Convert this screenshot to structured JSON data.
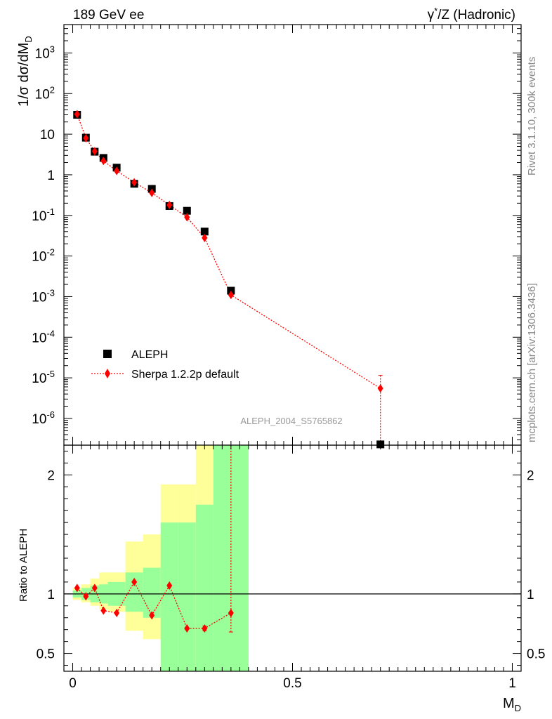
{
  "header": {
    "left": "189 GeV ee",
    "right_prefix": "γ",
    "right_sup": "*",
    "right_suffix": "/Z (Hadronic)"
  },
  "side_labels": {
    "rivet": "Rivet 3.1.10,  300k events",
    "mcplots": "mcplots.cern.ch [arXiv:1306.3436]"
  },
  "watermark": "ALEPH_2004_S5765862",
  "chart_data": [
    {
      "type": "scatter",
      "title": "",
      "ylabel": "1/σ  dσ/dM_D",
      "yscale": "log",
      "xlim": [
        -0.02,
        1.02
      ],
      "ylim": [
        2.2e-07,
        5000
      ],
      "legend_position": "lower-left",
      "y_ticks": [
        {
          "value": 1e-06,
          "mant": "10",
          "exp": "-6"
        },
        {
          "value": 1e-05,
          "mant": "10",
          "exp": "-5"
        },
        {
          "value": 0.0001,
          "mant": "10",
          "exp": "-4"
        },
        {
          "value": 0.001,
          "mant": "10",
          "exp": "-3"
        },
        {
          "value": 0.01,
          "mant": "10",
          "exp": "-2"
        },
        {
          "value": 0.1,
          "mant": "10",
          "exp": "-1"
        },
        {
          "value": 1,
          "mant": "1",
          "exp": ""
        },
        {
          "value": 10,
          "mant": "10",
          "exp": ""
        },
        {
          "value": 100,
          "mant": "10",
          "exp": "2"
        },
        {
          "value": 1000,
          "mant": "10",
          "exp": "3"
        }
      ],
      "series": [
        {
          "name": "ALEPH",
          "marker": "square",
          "color": "#000000",
          "x": [
            0.01,
            0.03,
            0.05,
            0.07,
            0.1,
            0.14,
            0.18,
            0.22,
            0.26,
            0.3,
            0.36,
            0.7
          ],
          "values": [
            30,
            8.2,
            3.7,
            2.6,
            1.5,
            0.6,
            0.45,
            0.17,
            0.13,
            0.04,
            0.0014,
            2.3e-07
          ]
        },
        {
          "name": "Sherpa 1.2.2p default",
          "marker": "diamond",
          "color": "#ff0000",
          "x": [
            0.01,
            0.03,
            0.05,
            0.07,
            0.1,
            0.14,
            0.18,
            0.22,
            0.26,
            0.3,
            0.36,
            0.7
          ],
          "values": [
            31,
            8,
            3.8,
            2.2,
            1.25,
            0.65,
            0.36,
            0.18,
            0.09,
            0.028,
            0.0011,
            5.5e-06
          ],
          "err_low": [
            31,
            8,
            3.8,
            2.2,
            1.25,
            0.65,
            0.36,
            0.18,
            0.09,
            0.028,
            0.0011,
            2.3e-07
          ],
          "err_high": [
            31,
            8,
            3.8,
            2.2,
            1.25,
            0.65,
            0.36,
            0.18,
            0.09,
            0.028,
            0.0011,
            1.15e-05
          ]
        }
      ]
    },
    {
      "type": "scatter",
      "ylabel": "Ratio to ALEPH",
      "xlabel": "M_D",
      "xlim": [
        -0.02,
        1.02
      ],
      "ylim": [
        0.35,
        2.25
      ],
      "x_ticks": [
        0,
        0.5,
        1
      ],
      "x_tick_labels": [
        "0",
        "0.5",
        "1"
      ],
      "y_ticks": [
        0.5,
        1,
        2
      ],
      "y_tick_labels": [
        "0.5",
        "1",
        "2"
      ],
      "reference_line": 1,
      "bands": [
        {
          "x0": 0.0,
          "x1": 0.02,
          "y_inner": [
            0.97,
            1.03
          ],
          "y_outer": [
            0.95,
            1.05
          ]
        },
        {
          "x0": 0.02,
          "x1": 0.04,
          "y_inner": [
            0.95,
            1.05
          ],
          "y_outer": [
            0.93,
            1.08
          ]
        },
        {
          "x0": 0.04,
          "x1": 0.06,
          "y_inner": [
            0.93,
            1.07
          ],
          "y_outer": [
            0.9,
            1.13
          ]
        },
        {
          "x0": 0.06,
          "x1": 0.08,
          "y_inner": [
            0.92,
            1.08
          ],
          "y_outer": [
            0.87,
            1.18
          ]
        },
        {
          "x0": 0.08,
          "x1": 0.12,
          "y_inner": [
            0.9,
            1.1
          ],
          "y_outer": [
            0.85,
            1.18
          ]
        },
        {
          "x0": 0.12,
          "x1": 0.16,
          "y_inner": [
            0.85,
            1.18
          ],
          "y_outer": [
            0.69,
            1.44
          ]
        },
        {
          "x0": 0.16,
          "x1": 0.2,
          "y_inner": [
            0.8,
            1.22
          ],
          "y_outer": [
            0.62,
            1.5
          ]
        },
        {
          "x0": 0.2,
          "x1": 0.24,
          "y_inner": [
            0.35,
            1.6
          ],
          "y_outer": [
            0.35,
            1.92
          ]
        },
        {
          "x0": 0.24,
          "x1": 0.28,
          "y_inner": [
            0.35,
            1.6
          ],
          "y_outer": [
            0.35,
            1.92
          ]
        },
        {
          "x0": 0.28,
          "x1": 0.32,
          "y_inner": [
            0.35,
            1.75
          ],
          "y_outer": [
            0.35,
            2.25
          ]
        },
        {
          "x0": 0.32,
          "x1": 0.4,
          "y_inner": [
            0.35,
            2.25
          ],
          "y_outer": [
            0.35,
            2.25
          ]
        }
      ],
      "band_colors": {
        "inner": "#99ff99",
        "outer": "#ffff99"
      },
      "series": [
        {
          "name": "Sherpa 1.2.2p default / ALEPH",
          "marker": "diamond",
          "color": "#ff0000",
          "x": [
            0.01,
            0.03,
            0.05,
            0.07,
            0.1,
            0.14,
            0.18,
            0.22,
            0.26,
            0.3,
            0.36
          ],
          "values": [
            1.05,
            0.98,
            1.05,
            0.86,
            0.84,
            1.1,
            0.82,
            1.07,
            0.71,
            0.71,
            0.84
          ],
          "err_low": [
            1.05,
            0.98,
            1.05,
            0.86,
            0.84,
            1.1,
            0.82,
            1.07,
            0.71,
            0.69,
            0.68
          ],
          "err_high": [
            1.05,
            0.98,
            1.05,
            0.86,
            0.84,
            1.1,
            0.82,
            1.07,
            0.71,
            0.73,
            2.25
          ]
        }
      ]
    }
  ]
}
